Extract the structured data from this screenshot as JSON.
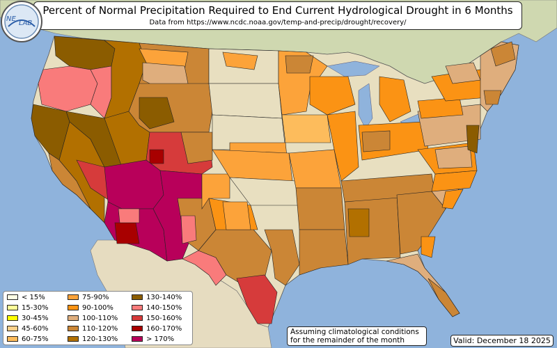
{
  "header": {
    "title": "Percent of Normal Precipitation Required to End Current Hydrological Drought in 6 Months",
    "source": "Data from https://www.ncdc.noaa.gov/temp-and-precip/drought/recovery/"
  },
  "legend": {
    "items": [
      {
        "label": "< 15%",
        "color": "#ffffe6"
      },
      {
        "label": "15-30%",
        "color": "#ffff99"
      },
      {
        "label": "30-45%",
        "color": "#ffff00"
      },
      {
        "label": "45-60%",
        "color": "#fcd18a"
      },
      {
        "label": "60-75%",
        "color": "#fdbc5c"
      },
      {
        "label": "75-90%",
        "color": "#fca33a"
      },
      {
        "label": "90-100%",
        "color": "#fb9314"
      },
      {
        "label": "100-110%",
        "color": "#dfae7d"
      },
      {
        "label": "110-120%",
        "color": "#cb8636"
      },
      {
        "label": "120-130%",
        "color": "#b27000"
      },
      {
        "label": "130-140%",
        "color": "#8b5c00"
      },
      {
        "label": "140-150%",
        "color": "#f97b7b"
      },
      {
        "label": "150-160%",
        "color": "#d63b3b"
      },
      {
        "label": "160-170%",
        "color": "#a80000"
      },
      {
        "label": "> 170%",
        "color": "#b8005a"
      }
    ]
  },
  "note": {
    "line1": "Assuming climatological conditions",
    "line2": "for the remainder of the month"
  },
  "valid": "Valid: December 18 2025",
  "logo": {
    "text_a": "NE",
    "text_b": "LAB"
  },
  "colors": {
    "ocean": "#8fb3dc",
    "land": "#e8dfc0",
    "canada": "#cfd8b0",
    "mexico": "#e6dcc0"
  }
}
